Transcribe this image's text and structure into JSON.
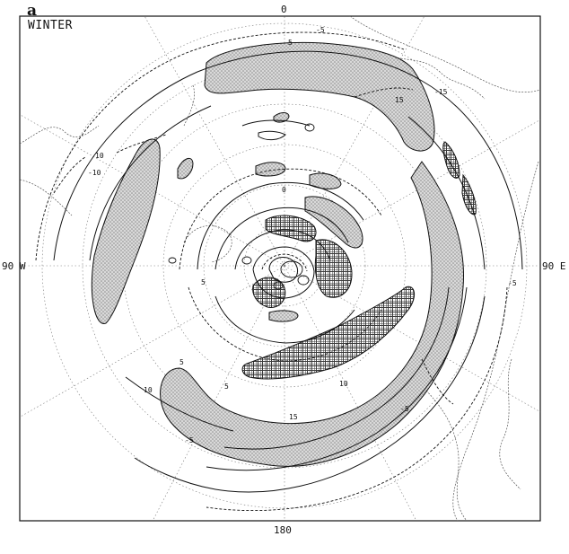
{
  "panel": {
    "letter": "a",
    "season": "WINTER"
  },
  "meridian_labels": {
    "top": "0",
    "bottom": "180",
    "left": "90 W",
    "right": "90 E"
  },
  "legend_shading": [
    "light stipple",
    "dense hatch"
  ],
  "contour_labels": [
    "-5",
    "5",
    "-10",
    "10",
    "-15",
    "15",
    "0",
    "5",
    "-5",
    "5",
    "10",
    "-5",
    "15",
    "5",
    "-5",
    "10"
  ],
  "colors": {
    "line": "#111111",
    "stipple": "#bdbdbd",
    "hatch": "#6a6a6a",
    "background": "#ffffff"
  }
}
